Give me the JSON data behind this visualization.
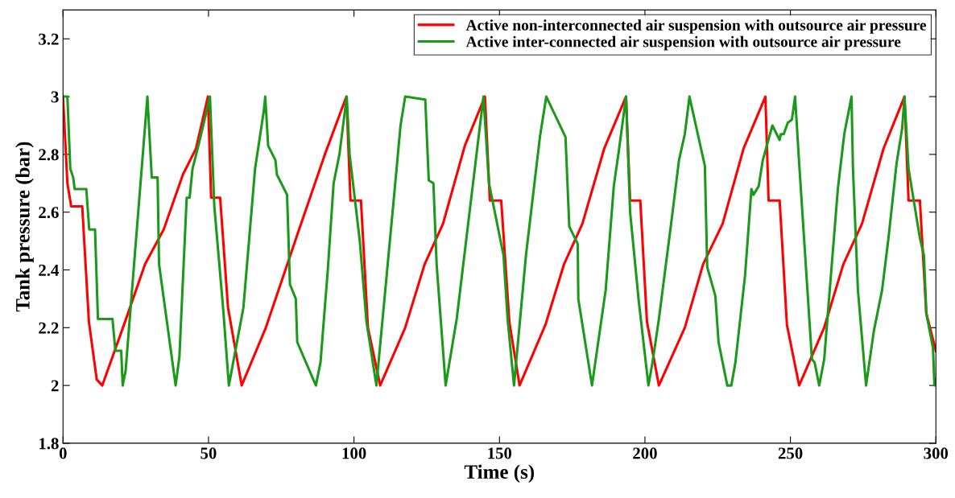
{
  "chart_data": {
    "type": "line",
    "xlabel": "Time (s)",
    "ylabel": "Tank pressure (bar)",
    "xlim": [
      0,
      300
    ],
    "ylim": [
      1.8,
      3.3
    ],
    "xticks": [
      0,
      50,
      100,
      150,
      200,
      250,
      300
    ],
    "yticks": [
      1.8,
      2,
      2.2,
      2.4,
      2.6,
      2.8,
      3,
      3.2
    ],
    "grid": false,
    "legend": "top right",
    "marker": "none",
    "line_style": "solid",
    "series": [
      {
        "name": "Active non-interconnected air suspension with outsource air pressure",
        "color": "#ff0000",
        "x": [
          0,
          1.5,
          2.8,
          6.6,
          8.9,
          11.6,
          13.5,
          21.3,
          28.2,
          34.6,
          41.2,
          45.7,
          49.8,
          50.9,
          54,
          56.7,
          61.4,
          69.7,
          80.8,
          90,
          97.4,
          98.8,
          102.4,
          104.8,
          109,
          117.6,
          124.3,
          130.6,
          138.1,
          145,
          146.7,
          150.6,
          153.4,
          156.9,
          165.8,
          172.2,
          178.5,
          186,
          193.5,
          194.9,
          198.4,
          200.7,
          204.8,
          213.7,
          220,
          226.7,
          233.9,
          241.4,
          242.5,
          246.3,
          248.8,
          253,
          261.6,
          268.2,
          274.6,
          282,
          289.2,
          290.6,
          294.5,
          296.7,
          300
        ],
        "values": [
          3.0,
          2.7,
          2.62,
          2.62,
          2.22,
          2.02,
          2.0,
          2.22,
          2.42,
          2.54,
          2.73,
          2.82,
          3.0,
          2.65,
          2.65,
          2.27,
          2.0,
          2.2,
          2.53,
          2.8,
          3.0,
          2.64,
          2.64,
          2.2,
          2.0,
          2.2,
          2.42,
          2.56,
          2.83,
          3.0,
          2.64,
          2.64,
          2.22,
          2.0,
          2.21,
          2.42,
          2.56,
          2.82,
          3.0,
          2.64,
          2.64,
          2.22,
          2.0,
          2.2,
          2.42,
          2.56,
          2.82,
          3.0,
          2.64,
          2.64,
          2.21,
          2.0,
          2.2,
          2.42,
          2.56,
          2.82,
          3.0,
          2.64,
          2.64,
          2.25,
          2.12
        ]
      },
      {
        "name": "Active inter-connected air suspension with outsource air pressure",
        "color": "#1a991a",
        "x": [
          0,
          1.5,
          2.5,
          3.5,
          4,
          8,
          9,
          11,
          12,
          17,
          18,
          20,
          20.5,
          21.5,
          29,
          30.5,
          32.5,
          33,
          38.7,
          40,
          42.5,
          43.5,
          44.5,
          47,
          50.5,
          52,
          55,
          57,
          62,
          66,
          69,
          69.5,
          70.5,
          73,
          73.5,
          77,
          78,
          80,
          80.5,
          86.9,
          88.5,
          91,
          93,
          95,
          97.5,
          98.5,
          102,
          104.3,
          107.7,
          114,
          116,
          117.6,
          124.5,
          125.7,
          127.3,
          128.4,
          131.5,
          135.3,
          144.5,
          146.4,
          151.4,
          152.8,
          155,
          159.1,
          163.9,
          166.1,
          172.7,
          174,
          176.9,
          177.1,
          181.8,
          186.5,
          189.3,
          191,
          193.5,
          194.9,
          197.9,
          201.2,
          202.6,
          204.8,
          209.5,
          211.7,
          213.7,
          215.3,
          220.6,
          221.4,
          224.2,
          225.3,
          228.3,
          229.7,
          231.1,
          234.4,
          236.6,
          237.3,
          239.1,
          240.5,
          243.8,
          246.3,
          246.7,
          247.7,
          249.1,
          250.5,
          251.6,
          253,
          257.4,
          258.3,
          259.9,
          261.6,
          266.3,
          268.5,
          271,
          271.5,
          273.2,
          276,
          278.7,
          281.5,
          283.7,
          286.5,
          288.4,
          289.2,
          290.6,
          294.5,
          295.9,
          296.7,
          299,
          299.5,
          300
        ],
        "values": [
          3.0,
          3.0,
          2.75,
          2.72,
          2.68,
          2.68,
          2.54,
          2.54,
          2.23,
          2.23,
          2.12,
          2.12,
          2.0,
          2.05,
          3.0,
          2.72,
          2.72,
          2.42,
          2.0,
          2.1,
          2.65,
          2.65,
          2.75,
          2.85,
          3.0,
          2.62,
          2.27,
          2.0,
          2.27,
          2.75,
          2.95,
          3.0,
          2.83,
          2.78,
          2.73,
          2.66,
          2.35,
          2.3,
          2.15,
          2.0,
          2.08,
          2.4,
          2.7,
          2.8,
          3.0,
          2.8,
          2.5,
          2.22,
          2.0,
          2.68,
          2.9,
          3.0,
          2.99,
          2.71,
          2.7,
          2.42,
          2.0,
          2.23,
          3.0,
          2.7,
          2.45,
          2.23,
          2.0,
          2.45,
          2.86,
          3.0,
          2.86,
          2.55,
          2.49,
          2.3,
          2.0,
          2.33,
          2.69,
          2.81,
          3.0,
          2.6,
          2.29,
          2.0,
          2.08,
          2.23,
          2.6,
          2.78,
          2.87,
          3.0,
          2.76,
          2.41,
          2.31,
          2.15,
          2.0,
          2.0,
          2.08,
          2.38,
          2.68,
          2.66,
          2.69,
          2.78,
          2.9,
          2.85,
          2.87,
          2.87,
          2.91,
          2.92,
          3.0,
          2.77,
          2.09,
          2.08,
          2.0,
          2.09,
          2.68,
          2.87,
          3.0,
          2.75,
          2.33,
          2.0,
          2.19,
          2.33,
          2.51,
          2.77,
          2.89,
          3.0,
          2.75,
          2.51,
          2.45,
          2.25,
          2.13,
          2.0,
          2.02
        ]
      }
    ]
  }
}
